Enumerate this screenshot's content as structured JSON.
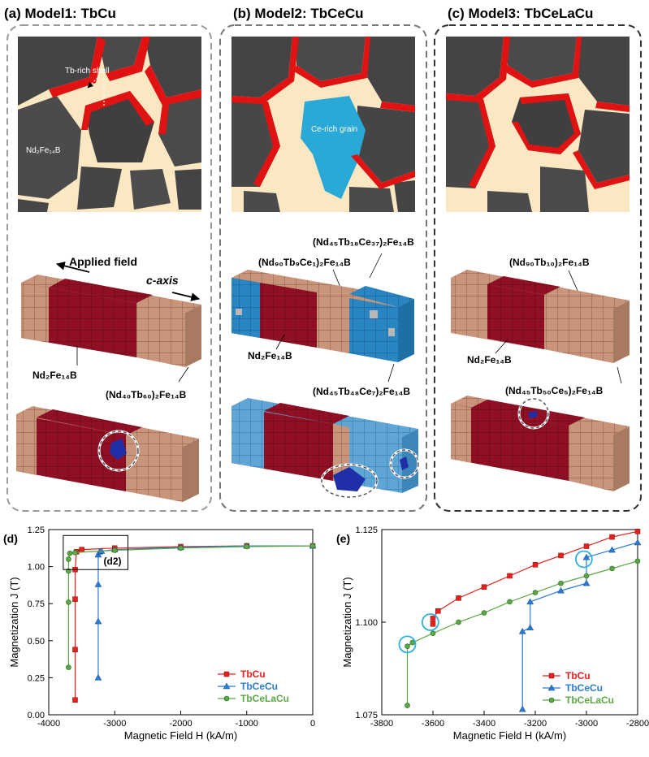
{
  "panels": [
    {
      "title": "(a) Model1: TbCu",
      "labels": {
        "shell": "Tb-rich shell",
        "grain": "Nd₂Fe₁₄B",
        "applied_field": "Applied field",
        "c_axis": "c-axis",
        "core": "Nd₂Fe₁₄B",
        "shell_phase": "(Nd₄₀Tb₆₀)₂Fe₁₄B"
      }
    },
    {
      "title": "(b) Model2: TbCeCu",
      "labels": {
        "ce_grain": "Ce-rich grain",
        "phase_top": "(Nd₄₅Tb₁₈Ce₃₇)₂Fe₁₄B",
        "phase_mid": "(Nd₉₀Tb₉Ce₁)₂Fe₁₄B",
        "core": "Nd₂Fe₁₄B",
        "phase_bottom": "(Nd₄₅Tb₄₈Ce₇)₂Fe₁₄B"
      }
    },
    {
      "title": "(c) Model3: TbCeLaCu",
      "labels": {
        "phase_top": "(Nd₉₀Tb₁₀)₂Fe₁₄B",
        "core": "Nd₂Fe₁₄B",
        "phase_bottom": "(Nd₄₅Tb₅₀Ce₅)₂Fe₁₄B"
      }
    }
  ],
  "chart_data": [
    {
      "id": "d",
      "type": "line",
      "panel_label": "(d)",
      "inset_label": "(d2)",
      "xlabel": "Magnetic Field H (kA/m)",
      "ylabel": "Magnetization J (T)",
      "xlim": [
        -4000,
        0
      ],
      "ylim": [
        0,
        1.25
      ],
      "xticks": [
        "-4000",
        "-3000",
        "-2000",
        "-1000",
        "0"
      ],
      "yticks": [
        "0.00",
        "0.25",
        "0.50",
        "0.75",
        "1.00",
        "1.25"
      ],
      "legend_position": "bottom-right",
      "series": [
        {
          "name": "TbCu",
          "color": "#e8211c",
          "marker": "square",
          "x": [
            -3600,
            -3600,
            -3600,
            -3600,
            -3580,
            -3500,
            -3000,
            -2000,
            -1000,
            0
          ],
          "y": [
            0.1,
            0.44,
            0.78,
            0.98,
            1.1,
            1.115,
            1.125,
            1.135,
            1.14,
            1.14
          ]
        },
        {
          "name": "TbCeCu",
          "color": "#2b7bd1",
          "marker": "triangle",
          "x": [
            -3250,
            -3250,
            -3250,
            -3250,
            -3230,
            -3200,
            -3000,
            -2000,
            -1000,
            0
          ],
          "y": [
            0.25,
            0.63,
            0.88,
            1.08,
            1.1,
            1.105,
            1.115,
            1.13,
            1.14,
            1.14
          ]
        },
        {
          "name": "TbCeLaCu",
          "color": "#5aa845",
          "marker": "circle",
          "x": [
            -3700,
            -3700,
            -3700,
            -3700,
            -3680,
            -3600,
            -3000,
            -2000,
            -1000,
            0
          ],
          "y": [
            0.32,
            0.76,
            0.97,
            1.05,
            1.09,
            1.095,
            1.11,
            1.125,
            1.135,
            1.14
          ]
        }
      ]
    },
    {
      "id": "e",
      "type": "line",
      "panel_label": "(e)",
      "xlabel": "Magnetic Field H (kA/m)",
      "ylabel": "Magnetization J (T)",
      "xlim": [
        -3800,
        -2800
      ],
      "ylim": [
        1.075,
        1.125
      ],
      "xticks": [
        "-3800",
        "-3600",
        "-3400",
        "-3200",
        "-3000",
        "-2800"
      ],
      "yticks": [
        "1.075",
        "1.100",
        "1.125"
      ],
      "legend_position": "bottom-right",
      "series": [
        {
          "name": "TbCu",
          "color": "#e8211c",
          "marker": "square",
          "x": [
            -3600,
            -3600,
            -3580,
            -3500,
            -3400,
            -3300,
            -3200,
            -3100,
            -3000,
            -2900,
            -2800
          ],
          "y": [
            1.0995,
            1.101,
            1.103,
            1.1065,
            1.1095,
            1.1125,
            1.1155,
            1.118,
            1.1205,
            1.123,
            1.1245
          ]
        },
        {
          "name": "TbCeCu",
          "color": "#2b7bd1",
          "marker": "triangle",
          "x": [
            -3250,
            -3250,
            -3220,
            -3220,
            -3100,
            -3000,
            -3000,
            -2900,
            -2800
          ],
          "y": [
            1.0765,
            1.0975,
            1.0985,
            1.1055,
            1.1085,
            1.1105,
            1.1175,
            1.1195,
            1.1215
          ]
        },
        {
          "name": "TbCeLaCu",
          "color": "#5aa845",
          "marker": "circle",
          "x": [
            -3700,
            -3700,
            -3680,
            -3600,
            -3500,
            -3400,
            -3300,
            -3200,
            -3100,
            -3000,
            -2900,
            -2800
          ],
          "y": [
            1.0775,
            1.0935,
            1.0945,
            1.097,
            1.1,
            1.1025,
            1.1055,
            1.108,
            1.1105,
            1.1125,
            1.1145,
            1.1165
          ]
        }
      ],
      "highlights": [
        {
          "x": -3700,
          "y": 1.094
        },
        {
          "x": -3610,
          "y": 1.1
        },
        {
          "x": -3010,
          "y": 1.117
        }
      ]
    }
  ],
  "colors": {
    "grain": "#4a4a4a",
    "grain_dark": "#333333",
    "shell_red": "#e01212",
    "boundary": "#fbe7c2",
    "ce_grain": "#2aa9d6",
    "core_block": "#8f1025",
    "shell_block": "#c9957a",
    "ce_block": "#2a86c2"
  }
}
